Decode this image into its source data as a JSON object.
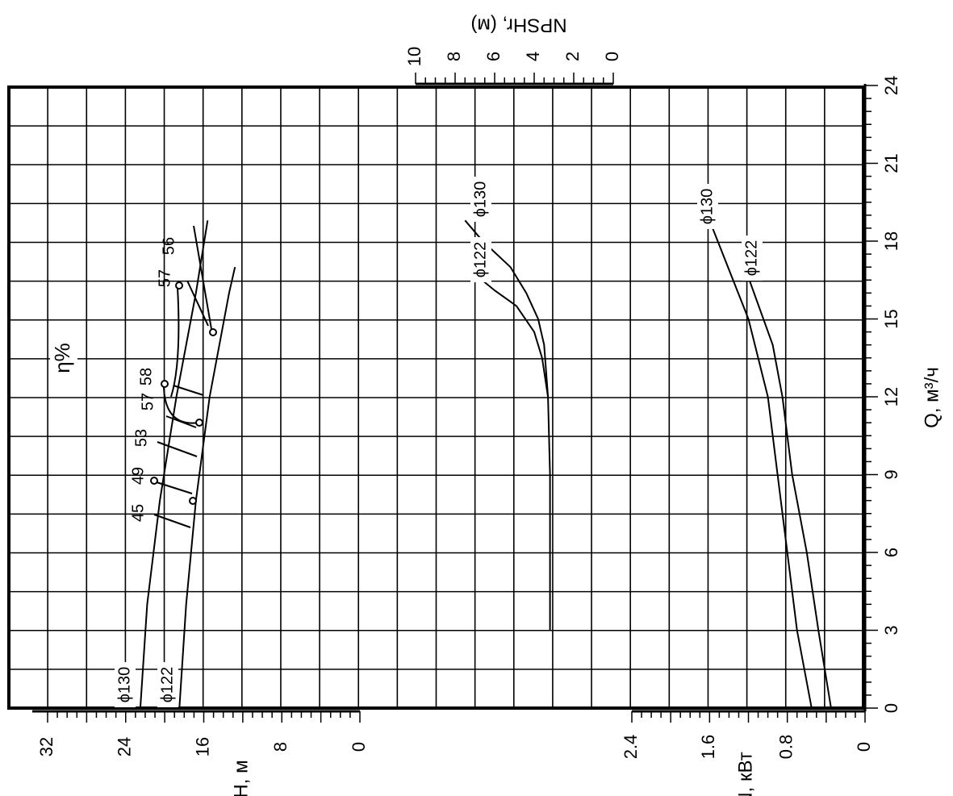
{
  "chart_data": {
    "type": "line",
    "orientation": "rotated-90",
    "x_axis": {
      "label": "Q, м³/ч",
      "ticks": [
        "0",
        "3",
        "6",
        "9",
        "12",
        "15",
        "18",
        "21",
        "24"
      ],
      "range": [
        0,
        24
      ]
    },
    "head_axis": {
      "label": "H, м",
      "ticks": [
        "32",
        "24",
        "16",
        "8",
        "0"
      ],
      "range": [
        0,
        32
      ]
    },
    "power_axis": {
      "label": "N, кВт",
      "ticks": [
        "2.4",
        "1.6",
        "0.8",
        "0"
      ],
      "range": [
        0,
        3.2
      ]
    },
    "npsh_axis": {
      "label": "NPSHr, (м)",
      "ticks": [
        "10",
        "8",
        "6",
        "4",
        "2",
        "0"
      ],
      "range": [
        0,
        10
      ]
    },
    "efficiency_label": "η%",
    "efficiency_labels": [
      "45",
      "49",
      "53",
      "57",
      "58",
      "57",
      "56"
    ],
    "head_series": [
      {
        "name": "ϕ130",
        "x": [
          0,
          4,
          8,
          12,
          16,
          18.8
        ],
        "y": [
          22.5,
          21.8,
          20.5,
          18.8,
          16.8,
          15.6
        ]
      },
      {
        "name": "ϕ122",
        "x": [
          0,
          4,
          8,
          12,
          16,
          17.0
        ],
        "y": [
          18.5,
          17.8,
          16.8,
          15.4,
          13.4,
          12.8
        ]
      }
    ],
    "npsh_series": [
      {
        "name": "ϕ130",
        "x": [
          3,
          6,
          9,
          12,
          14,
          15,
          16,
          17,
          18,
          18.8
        ],
        "y": [
          3.2,
          3.2,
          3.2,
          3.3,
          3.5,
          3.8,
          4.4,
          5.2,
          6.6,
          7.5
        ]
      },
      {
        "name": "ϕ122",
        "x": [
          12,
          13.5,
          14.5,
          15.5,
          16.1,
          16.6
        ],
        "y": [
          3.3,
          3.6,
          4.0,
          4.9,
          6.0,
          6.8
        ]
      }
    ],
    "power_series": [
      {
        "name": "ϕ130",
        "x": [
          0,
          3,
          6,
          9,
          12,
          15,
          18.8
        ],
        "y": [
          0.55,
          0.7,
          0.8,
          0.9,
          1.0,
          1.2,
          1.6
        ]
      },
      {
        "name": "ϕ122",
        "x": [
          0,
          3,
          6,
          9,
          12,
          14,
          16.6
        ],
        "y": [
          0.35,
          0.48,
          0.6,
          0.75,
          0.85,
          0.95,
          1.2
        ]
      }
    ],
    "grid": true
  }
}
